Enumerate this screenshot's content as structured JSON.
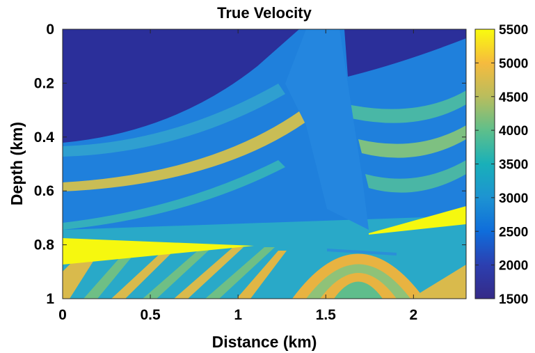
{
  "chart_data": {
    "type": "heatmap",
    "title": "True Velocity",
    "xlabel": "Distance (km)",
    "ylabel": "Depth (km)",
    "xlim": [
      0,
      2.3
    ],
    "ylim": [
      0,
      1
    ],
    "y_reversed": true,
    "x_ticks": [
      "0",
      "0.5",
      "1",
      "1.5",
      "2"
    ],
    "x_tick_values": [
      0,
      0.5,
      1,
      1.5,
      2
    ],
    "y_ticks": [
      "0",
      "0.2",
      "0.4",
      "0.6",
      "0.8",
      "1"
    ],
    "y_tick_values": [
      0,
      0.2,
      0.4,
      0.6,
      0.8,
      1
    ],
    "colorbar": {
      "range": [
        1500,
        5500
      ],
      "ticks": [
        "1500",
        "2000",
        "2500",
        "3000",
        "3500",
        "4000",
        "4500",
        "5000",
        "5500"
      ],
      "tick_values": [
        1500,
        2000,
        2500,
        3000,
        3500,
        4000,
        4500,
        5000,
        5500
      ],
      "colormap": "parula"
    },
    "regions": [
      {
        "name": "shallow low-velocity layer",
        "depth_range": [
          0,
          0.42
        ],
        "velocity_approx": 1600
      },
      {
        "name": "salt dome",
        "x_range": [
          1.3,
          1.65
        ],
        "depth_range": [
          0,
          0.8
        ],
        "velocity_approx": 2300
      },
      {
        "name": "high-velocity wedge left",
        "x_range": [
          0,
          1.1
        ],
        "depth_range": [
          0.78,
          0.88
        ],
        "velocity_approx": 5500
      },
      {
        "name": "high-velocity wedge right",
        "x_range": [
          1.75,
          2.3
        ],
        "depth_range": [
          0.66,
          0.76
        ],
        "velocity_approx": 5500
      }
    ]
  }
}
